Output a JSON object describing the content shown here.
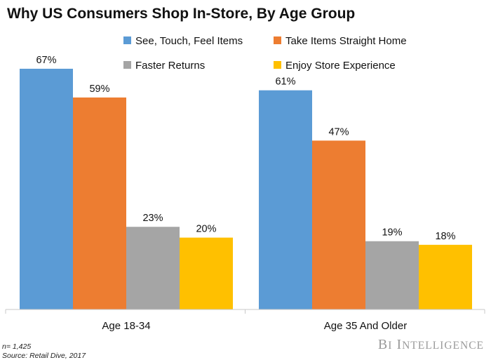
{
  "chart_data": {
    "type": "bar",
    "title": "Why US Consumers Shop In-Store, By Age Group",
    "categories": [
      "Age 18-34",
      "Age 35 And Older"
    ],
    "series": [
      {
        "name": "See, Touch, Feel Items",
        "values": [
          67,
          61
        ],
        "labels": [
          "67%",
          "61%"
        ],
        "color": "#5b9bd5"
      },
      {
        "name": "Take Items Straight Home",
        "values": [
          59,
          47
        ],
        "labels": [
          "59%",
          "47%"
        ],
        "color": "#ed7d31"
      },
      {
        "name": "Faster Returns",
        "values": [
          23,
          19
        ],
        "labels": [
          "23%",
          "19%"
        ],
        "color": "#a5a5a5"
      },
      {
        "name": "Enjoy Store Experience",
        "values": [
          20,
          18
        ],
        "labels": [
          "20%",
          "18%"
        ],
        "color": "#ffc000"
      }
    ],
    "ylim": [
      0,
      80
    ],
    "grid": false,
    "legend_placement": "top"
  },
  "footer": {
    "sample": "n= 1,425",
    "source": "Source: Retail Dive, 2017"
  },
  "branding": {
    "logo_text": "BI INTELLIGENCE",
    "color": "#9a9a9a"
  }
}
